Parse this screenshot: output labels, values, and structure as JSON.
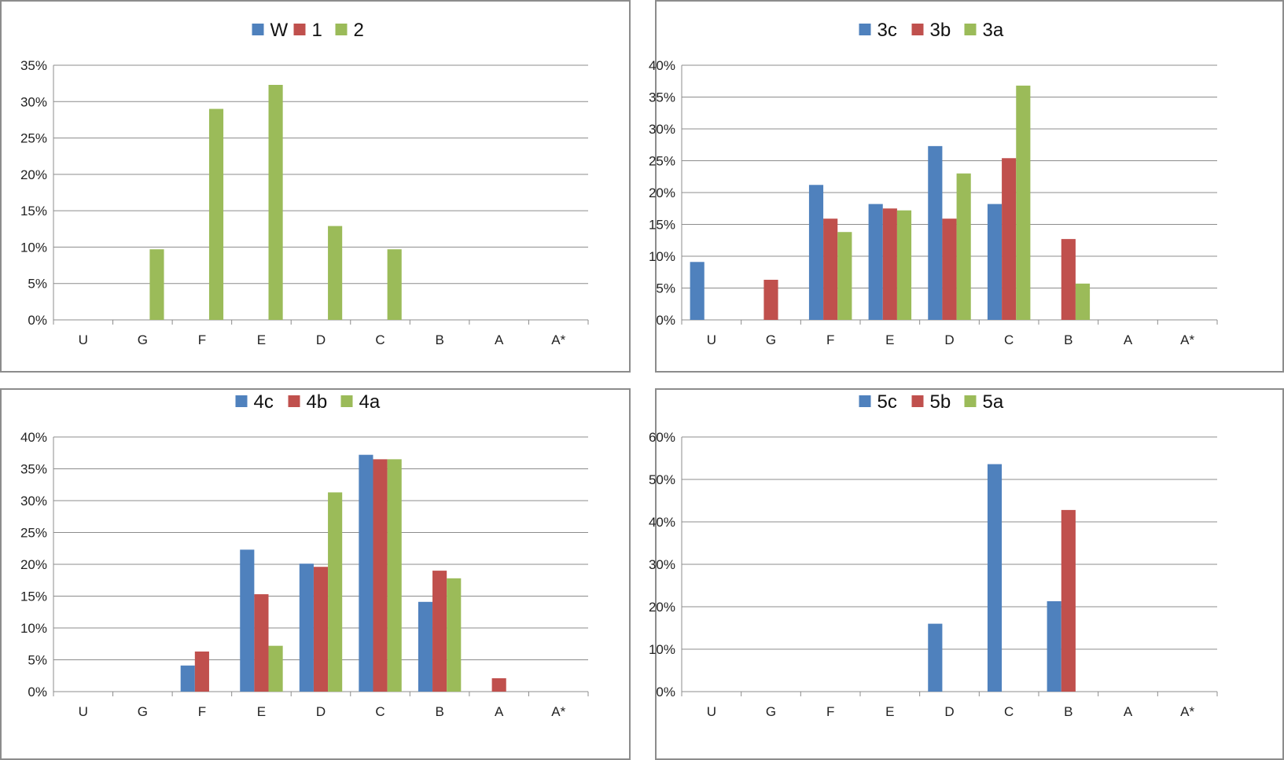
{
  "colors": {
    "blue": "#4f81bd",
    "red": "#c0504d",
    "green": "#9bbb59",
    "grid": "#8c8c8c"
  },
  "chart_data": [
    {
      "type": "bar",
      "categories": [
        "U",
        "G",
        "F",
        "E",
        "D",
        "C",
        "B",
        "A",
        "A*"
      ],
      "yticks": [
        "0%",
        "5%",
        "10%",
        "15%",
        "20%",
        "25%",
        "30%",
        "35%"
      ],
      "ylim": [
        0,
        35
      ],
      "grid": true,
      "legend": "top-center",
      "series": [
        {
          "name": "W",
          "color": "#4f81bd",
          "values": [
            0,
            0,
            0,
            0,
            0,
            0,
            0,
            0,
            0
          ]
        },
        {
          "name": "1",
          "color": "#c0504d",
          "values": [
            0,
            0,
            0,
            0,
            0,
            0,
            0,
            0,
            0
          ]
        },
        {
          "name": "2",
          "color": "#9bbb59",
          "values": [
            0,
            9.7,
            29.0,
            32.3,
            12.9,
            9.7,
            0,
            0,
            0
          ]
        }
      ]
    },
    {
      "type": "bar",
      "categories": [
        "U",
        "G",
        "F",
        "E",
        "D",
        "C",
        "B",
        "A",
        "A*"
      ],
      "yticks": [
        "0%",
        "5%",
        "10%",
        "15%",
        "20%",
        "25%",
        "30%",
        "35%",
        "40%"
      ],
      "ylim": [
        0,
        40
      ],
      "grid": true,
      "legend": "top-center",
      "series": [
        {
          "name": "3c",
          "color": "#4f81bd",
          "values": [
            9.1,
            0,
            21.2,
            18.2,
            27.3,
            18.2,
            0,
            0,
            0
          ]
        },
        {
          "name": "3b",
          "color": "#c0504d",
          "values": [
            0,
            6.3,
            15.9,
            17.5,
            15.9,
            25.4,
            12.7,
            0,
            0
          ]
        },
        {
          "name": "3a",
          "color": "#9bbb59",
          "values": [
            0,
            0,
            13.8,
            17.2,
            23.0,
            36.8,
            5.7,
            0,
            0
          ]
        }
      ]
    },
    {
      "type": "bar",
      "categories": [
        "U",
        "G",
        "F",
        "E",
        "D",
        "C",
        "B",
        "A",
        "A*"
      ],
      "yticks": [
        "0%",
        "5%",
        "10%",
        "15%",
        "20%",
        "25%",
        "30%",
        "35%",
        "40%"
      ],
      "ylim": [
        0,
        40
      ],
      "grid": true,
      "legend": "top-center",
      "series": [
        {
          "name": "4c",
          "color": "#4f81bd",
          "values": [
            0,
            0,
            4.1,
            22.3,
            20.1,
            37.2,
            14.1,
            0,
            0
          ]
        },
        {
          "name": "4b",
          "color": "#c0504d",
          "values": [
            0,
            0,
            6.3,
            15.3,
            19.6,
            36.5,
            19.0,
            2.1,
            0
          ]
        },
        {
          "name": "4a",
          "color": "#9bbb59",
          "values": [
            0,
            0,
            0,
            7.2,
            31.3,
            36.5,
            17.8,
            0,
            0
          ]
        }
      ]
    },
    {
      "type": "bar",
      "categories": [
        "U",
        "G",
        "F",
        "E",
        "D",
        "C",
        "B",
        "A",
        "A*"
      ],
      "yticks": [
        "0%",
        "10%",
        "20%",
        "30%",
        "40%",
        "50%",
        "60%"
      ],
      "ylim": [
        0,
        60
      ],
      "grid": true,
      "legend": "top-center",
      "series": [
        {
          "name": "5c",
          "color": "#4f81bd",
          "values": [
            0,
            0,
            0,
            0,
            16.0,
            53.6,
            21.3,
            0,
            0
          ]
        },
        {
          "name": "5b",
          "color": "#c0504d",
          "values": [
            0,
            0,
            0,
            0,
            0,
            0,
            42.8,
            0,
            0
          ]
        },
        {
          "name": "5a",
          "color": "#9bbb59",
          "values": [
            0,
            0,
            0,
            0,
            0,
            0,
            0,
            0,
            0
          ]
        }
      ]
    }
  ]
}
